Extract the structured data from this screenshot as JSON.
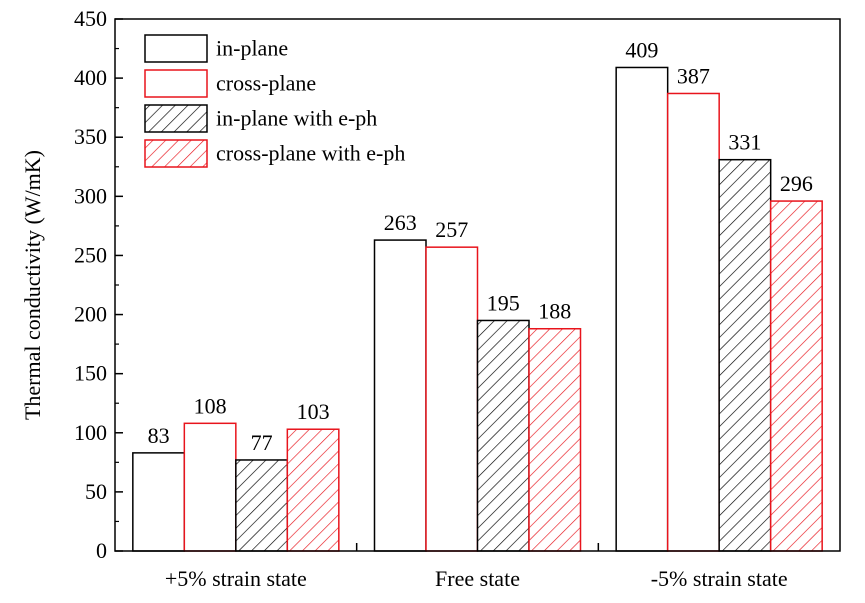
{
  "chart_data": {
    "type": "bar",
    "title": "",
    "xlabel": "",
    "ylabel": "Thermal conductivity (W/mK)",
    "ylim": [
      0,
      450
    ],
    "yticks": [
      0,
      50,
      100,
      150,
      200,
      250,
      300,
      350,
      400,
      450
    ],
    "categories": [
      "+5% strain state",
      "Free state",
      "-5% strain state"
    ],
    "series": [
      {
        "name": "in-plane",
        "values": [
          83,
          263,
          409
        ],
        "color": "#000000",
        "hatch": false
      },
      {
        "name": "cross-plane",
        "values": [
          108,
          257,
          387
        ],
        "color": "#e8141c",
        "hatch": false
      },
      {
        "name": "in-plane with e-ph",
        "values": [
          77,
          195,
          331
        ],
        "color": "#000000",
        "hatch": true
      },
      {
        "name": "cross-plane with e-ph",
        "values": [
          103,
          188,
          296
        ],
        "color": "#e8141c",
        "hatch": true
      }
    ],
    "data_labels": true,
    "legend_position": "top-left",
    "grid": false
  }
}
